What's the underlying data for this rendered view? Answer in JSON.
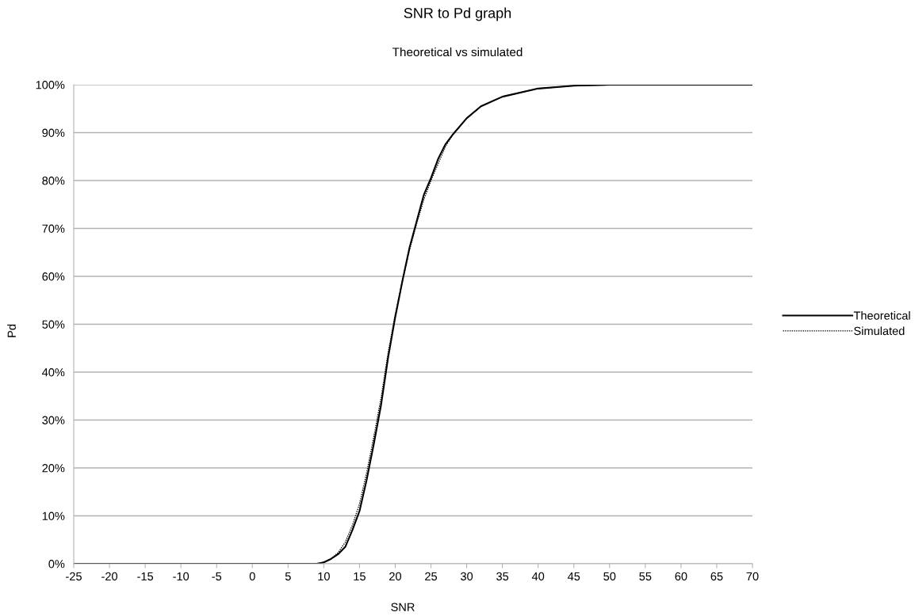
{
  "chart_data": {
    "type": "line",
    "title": "SNR to Pd graph",
    "subtitle": "Theoretical vs simulated",
    "xlabel": "SNR",
    "ylabel": "Pd",
    "xlim": [
      -25,
      70
    ],
    "xticks": [
      -25,
      -20,
      -15,
      -10,
      -5,
      0,
      5,
      10,
      15,
      20,
      25,
      30,
      35,
      40,
      45,
      50,
      55,
      60,
      65,
      70
    ],
    "ylim": [
      0,
      100
    ],
    "yticks": [
      {
        "value": 0,
        "label": "0%"
      },
      {
        "value": 10,
        "label": "10%"
      },
      {
        "value": 20,
        "label": "20%"
      },
      {
        "value": 30,
        "label": "30%"
      },
      {
        "value": 40,
        "label": "40%"
      },
      {
        "value": 50,
        "label": "50%"
      },
      {
        "value": 60,
        "label": "60%"
      },
      {
        "value": 70,
        "label": "70%"
      },
      {
        "value": 80,
        "label": "80%"
      },
      {
        "value": 90,
        "label": "90%"
      },
      {
        "value": 100,
        "label": "100%"
      }
    ],
    "grid": "y",
    "legend": "right",
    "marker": "none",
    "x": [
      -25,
      9,
      10,
      11,
      12,
      13,
      14,
      15,
      16,
      17,
      18,
      19,
      20,
      21,
      22,
      23,
      24,
      25,
      26,
      27,
      28,
      30,
      32,
      35,
      40,
      45,
      50,
      70
    ],
    "series": [
      {
        "name": "Theoretical",
        "color": "#000000",
        "line_style": "solid",
        "values": [
          0,
          0,
          0.3,
          1,
          2,
          3.5,
          7,
          11,
          17.5,
          25,
          33,
          43,
          51.5,
          59,
          66,
          71.5,
          77,
          80.5,
          84.5,
          87.5,
          89.5,
          93,
          95.5,
          97.5,
          99.2,
          99.8,
          100,
          100
        ]
      },
      {
        "name": "Simulated",
        "color": "#000000",
        "line_style": "dotted",
        "values": [
          0,
          0,
          0.3,
          1,
          2.3,
          4.5,
          8,
          12.5,
          19,
          26.5,
          34.5,
          44,
          52,
          59,
          65.5,
          71,
          76,
          80,
          83.5,
          87,
          89.5,
          93,
          95.5,
          97.5,
          99.2,
          99.8,
          100,
          100
        ]
      }
    ]
  }
}
